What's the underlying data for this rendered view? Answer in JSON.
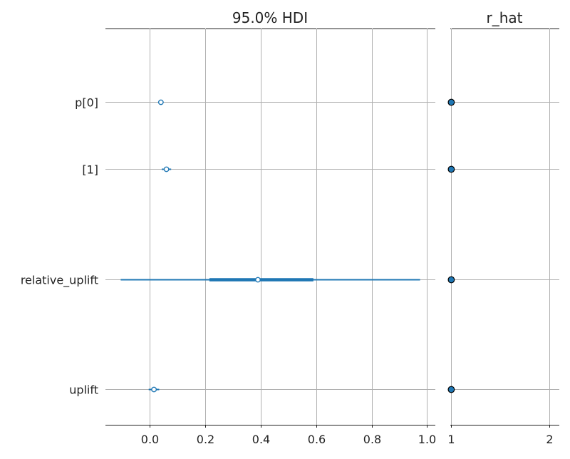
{
  "chart_data": [
    {
      "type": "forest",
      "title": "95.0% HDI",
      "xticks": [
        0.0,
        0.2,
        0.4,
        0.6,
        0.8,
        1.0
      ],
      "xtick_labels": [
        "0.0",
        "0.2",
        "0.4",
        "0.6",
        "0.8",
        "1.0"
      ],
      "xlim": [
        -0.16,
        1.03
      ],
      "grid": true,
      "color": "#1f77b4",
      "rows": [
        {
          "label": "p[0]",
          "mean": 0.04,
          "iqr": [
            0.035,
            0.045
          ],
          "hdi": [
            0.03,
            0.05
          ]
        },
        {
          "label": "[1]",
          "mean": 0.06,
          "iqr": [
            0.052,
            0.068
          ],
          "hdi": [
            0.043,
            0.077
          ]
        },
        {
          "label": "relative_uplift",
          "mean": 0.39,
          "iqr": [
            0.215,
            0.59
          ],
          "hdi": [
            -0.105,
            0.975
          ]
        },
        {
          "label": "uplift",
          "mean": 0.015,
          "iqr": [
            0.006,
            0.024
          ],
          "hdi": [
            -0.004,
            0.034
          ]
        }
      ]
    },
    {
      "type": "scatter",
      "title": "r_hat",
      "xticks": [
        1,
        2
      ],
      "xtick_labels": [
        "1",
        "2"
      ],
      "xlim": [
        0.99,
        2.1
      ],
      "grid": true,
      "point_color": "#1f77b4",
      "edge_color": "#000000",
      "values": [
        1.0,
        1.0,
        1.0,
        1.0
      ]
    }
  ]
}
